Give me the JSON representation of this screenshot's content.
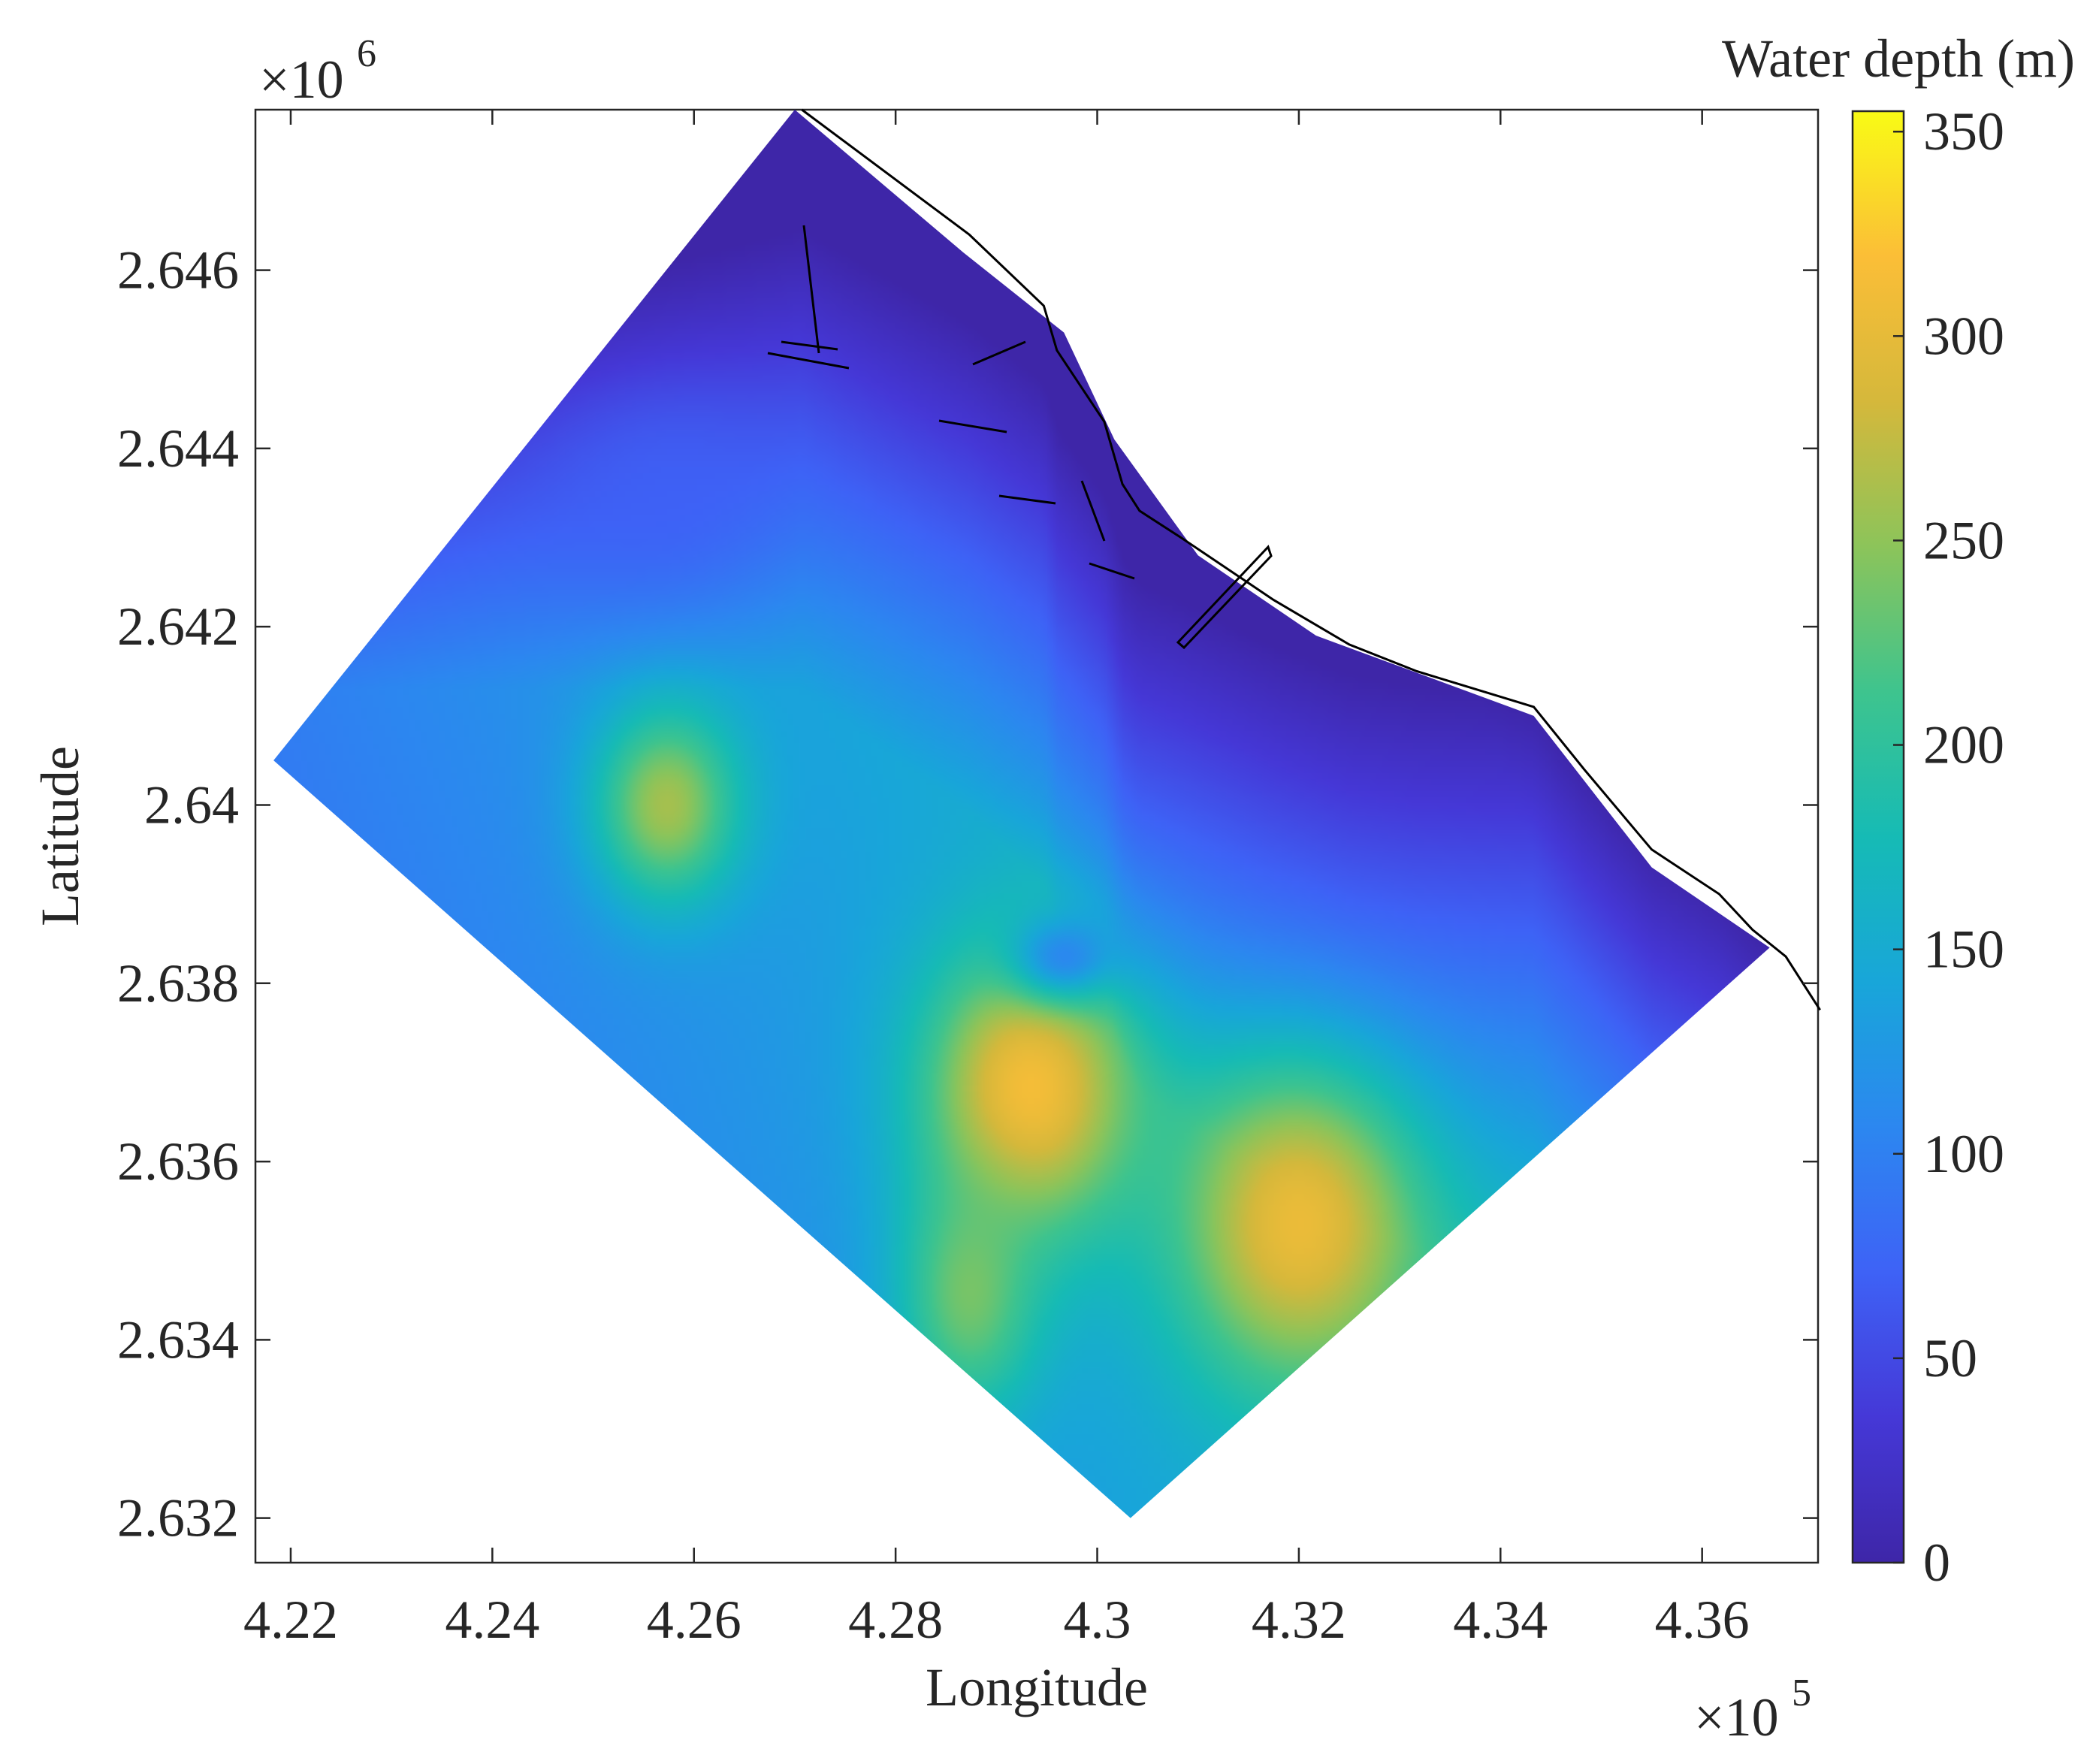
{
  "chart_data": {
    "type": "heatmap",
    "xlabel": "Longitude",
    "ylabel": "Latitude",
    "x_exponent": "×10",
    "x_exponent_power": "5",
    "y_exponent": "×10",
    "y_exponent_power": "6",
    "colorbar_title": "Water depth (m)",
    "xlim": [
      4.2165,
      4.3715
    ],
    "ylim": [
      2.6315,
      2.6478
    ],
    "x_ticks": [
      {
        "value": 4.22,
        "label": "4.22"
      },
      {
        "value": 4.24,
        "label": "4.24"
      },
      {
        "value": 4.26,
        "label": "4.26"
      },
      {
        "value": 4.28,
        "label": "4.28"
      },
      {
        "value": 4.3,
        "label": "4.3"
      },
      {
        "value": 4.32,
        "label": "4.32"
      },
      {
        "value": 4.34,
        "label": "4.34"
      },
      {
        "value": 4.36,
        "label": "4.36"
      }
    ],
    "y_ticks": [
      {
        "value": 2.632,
        "label": "2.632"
      },
      {
        "value": 2.634,
        "label": "2.634"
      },
      {
        "value": 2.636,
        "label": "2.636"
      },
      {
        "value": 2.638,
        "label": "2.638"
      },
      {
        "value": 2.64,
        "label": "2.64"
      },
      {
        "value": 2.642,
        "label": "2.642"
      },
      {
        "value": 2.644,
        "label": "2.644"
      },
      {
        "value": 2.646,
        "label": "2.646"
      }
    ],
    "colorbar": {
      "range": [
        0,
        355
      ],
      "ticks": [
        {
          "value": 0,
          "label": "0"
        },
        {
          "value": 50,
          "label": "50"
        },
        {
          "value": 100,
          "label": "100"
        },
        {
          "value": 150,
          "label": "150"
        },
        {
          "value": 200,
          "label": "200"
        },
        {
          "value": 250,
          "label": "250"
        },
        {
          "value": 300,
          "label": "300"
        },
        {
          "value": 350,
          "label": "350"
        }
      ]
    },
    "domain_polygon": [
      [
        4.27,
        2.6478
      ],
      [
        4.2867,
        2.6462
      ],
      [
        4.2967,
        2.6453
      ],
      [
        4.3017,
        2.6441
      ],
      [
        4.31,
        2.6428
      ],
      [
        4.3217,
        2.6419
      ],
      [
        4.3433,
        2.641
      ],
      [
        4.355,
        2.6393
      ],
      [
        4.3667,
        2.6384
      ],
      [
        4.3033,
        2.632
      ],
      [
        4.2183,
        2.6405
      ]
    ],
    "coastline": [
      [
        4.2707,
        2.6478
      ],
      [
        4.2873,
        2.6464
      ],
      [
        4.2947,
        2.6456
      ],
      [
        4.296,
        2.6451
      ],
      [
        4.3007,
        2.6443
      ],
      [
        4.3025,
        2.6436
      ],
      [
        4.3042,
        2.6433
      ],
      [
        4.3083,
        2.643
      ],
      [
        4.3175,
        2.6423
      ],
      [
        4.325,
        2.6418
      ],
      [
        4.3317,
        2.6415
      ],
      [
        4.3433,
        2.6411
      ],
      [
        4.3483,
        2.6404
      ],
      [
        4.355,
        2.6395
      ],
      [
        4.3617,
        2.639
      ],
      [
        4.365,
        2.6386
      ],
      [
        4.3683,
        2.6383
      ],
      [
        4.3717,
        2.6377
      ]
    ],
    "depth_features": [
      {
        "x": 4.2573,
        "y": 2.64,
        "depth": 285,
        "sx": 0.0072,
        "sy": 0.0011
      },
      {
        "x": 4.2933,
        "y": 2.6368,
        "depth": 345,
        "sx": 0.0105,
        "sy": 0.0016
      },
      {
        "x": 4.32,
        "y": 2.6353,
        "depth": 330,
        "sx": 0.012,
        "sy": 0.0018
      },
      {
        "x": 4.2873,
        "y": 2.6345,
        "depth": 255,
        "sx": 0.007,
        "sy": 0.0014
      },
      {
        "x": 4.2967,
        "y": 2.6383,
        "depth": 90,
        "sx": 0.0055,
        "sy": 0.0005
      },
      {
        "x": 4.2567,
        "y": 2.6435,
        "depth": 70,
        "sx": 0.012,
        "sy": 0.0012
      }
    ]
  }
}
